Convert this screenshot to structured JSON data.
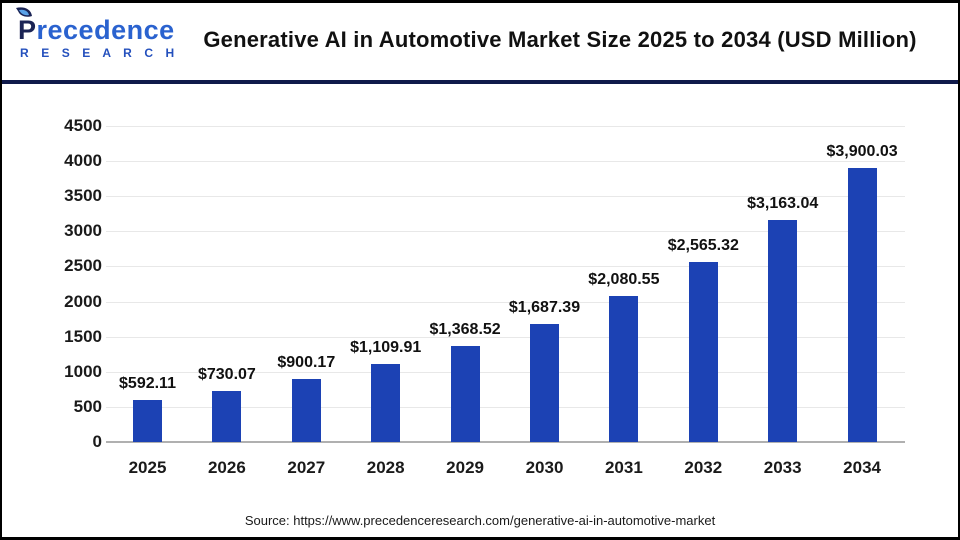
{
  "header": {
    "logo": {
      "initial": "P",
      "rest": "recedence",
      "subtitle": "R E S E A R C H"
    },
    "title": "Generative AI in Automotive Market Size 2025 to 2034 (USD Million)"
  },
  "chart_data": {
    "type": "bar",
    "title": "Generative AI in Automotive Market Size 2025 to 2034 (USD Million)",
    "unit": "USD Million",
    "categories": [
      "2025",
      "2026",
      "2027",
      "2028",
      "2029",
      "2030",
      "2031",
      "2032",
      "2033",
      "2034"
    ],
    "values": [
      592.11,
      730.07,
      900.17,
      1109.91,
      1368.52,
      1687.39,
      2080.55,
      2565.32,
      3163.04,
      3900.03
    ],
    "value_labels": [
      "$592.11",
      "$730.07",
      "$900.17",
      "$1,109.91",
      "$1,368.52",
      "$1,687.39",
      "$2,080.55",
      "$2,565.32",
      "$3,163.04",
      "$3,900.03"
    ],
    "xlabel": "",
    "ylabel": "",
    "ylim": [
      0,
      4500
    ],
    "yticks": [
      0,
      500,
      1000,
      1500,
      2000,
      2500,
      3000,
      3500,
      4000,
      4500
    ],
    "grid": true,
    "legend": false
  },
  "footer": {
    "source": "Source: https://www.precedenceresearch.com/generative-ai-in-automotive-market"
  },
  "colors": {
    "bar": "#1c42b4",
    "divider": "#101a4b",
    "grid": "#e8e8e8",
    "axis_line": "#b0b0b0",
    "logo_navy": "#1b2455",
    "logo_blue": "#2a62cf",
    "leaf_light_blue": "#5aa2e8",
    "text": "#111111"
  }
}
